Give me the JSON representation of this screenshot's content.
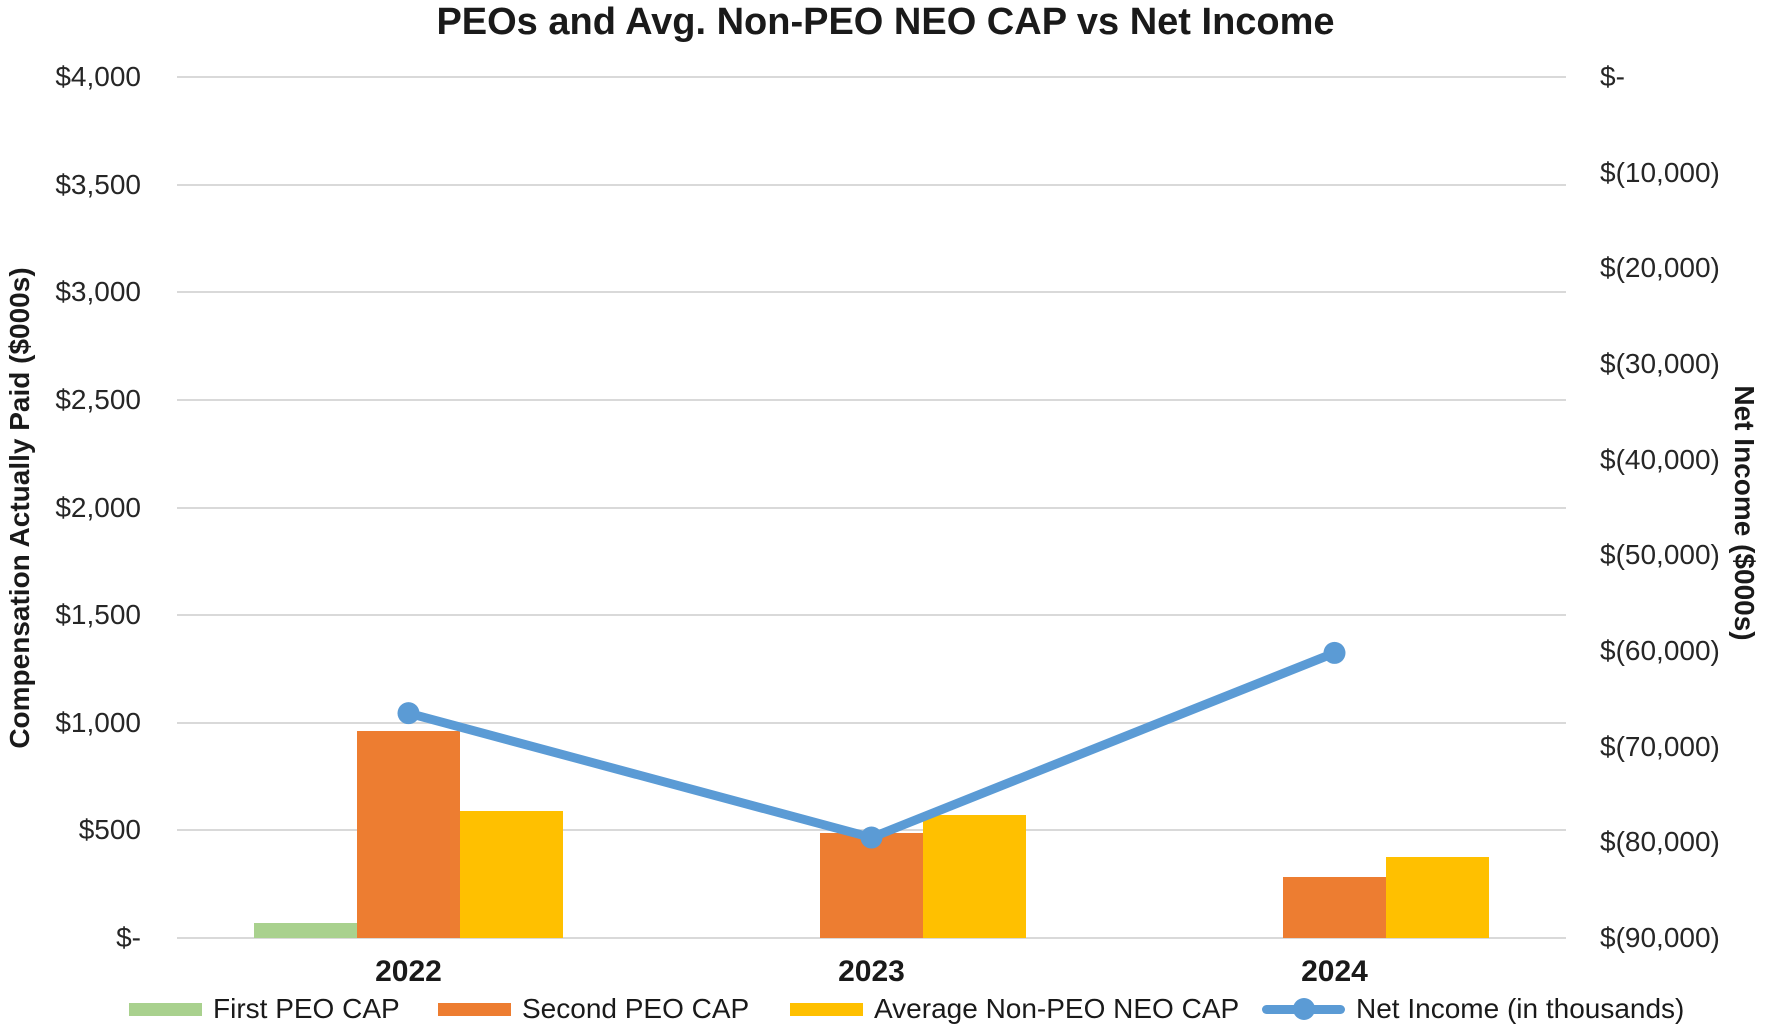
{
  "chart_data": {
    "type": "combo-bar-line",
    "title": "PEOs and Avg. Non-PEO NEO CAP vs Net Income",
    "categories": [
      "2022",
      "2023",
      "2024"
    ],
    "bar_series": [
      {
        "name": "First PEO CAP",
        "color": "#A9D18E",
        "values": [
          70,
          null,
          null
        ]
      },
      {
        "name": "Second PEO CAP",
        "color": "#ED7D31",
        "values": [
          960,
          490,
          285
        ]
      },
      {
        "name": "Average Non-PEO NEO CAP",
        "color": "#FFC000",
        "values": [
          590,
          570,
          375
        ]
      }
    ],
    "line_series": {
      "name": "Net Income (in thousands)",
      "color": "#5B9BD5",
      "axis": "right",
      "values": [
        -66500,
        -79500,
        -60200
      ]
    },
    "left_axis": {
      "title": "Compensation Actually Paid ($000s)",
      "min": 0,
      "max": 4000,
      "step": 500,
      "tick_labels": [
        "$4,000",
        "$3,500",
        "$3,000",
        "$2,500",
        "$2,000",
        "$1,500",
        "$1,000",
        "$500",
        "$-"
      ]
    },
    "right_axis": {
      "title": "Net Income ($000s)",
      "min": -90000,
      "max": 0,
      "step": -10000,
      "tick_labels": [
        "$-",
        "$(10,000)",
        "$(20,000)",
        "$(30,000)",
        "$(40,000)",
        "$(50,000)",
        "$(60,000)",
        "$(70,000)",
        "$(80,000)",
        "$(90,000)"
      ]
    },
    "grid": true,
    "legend_position": "bottom",
    "gridline_color": "#D9D9D9"
  }
}
